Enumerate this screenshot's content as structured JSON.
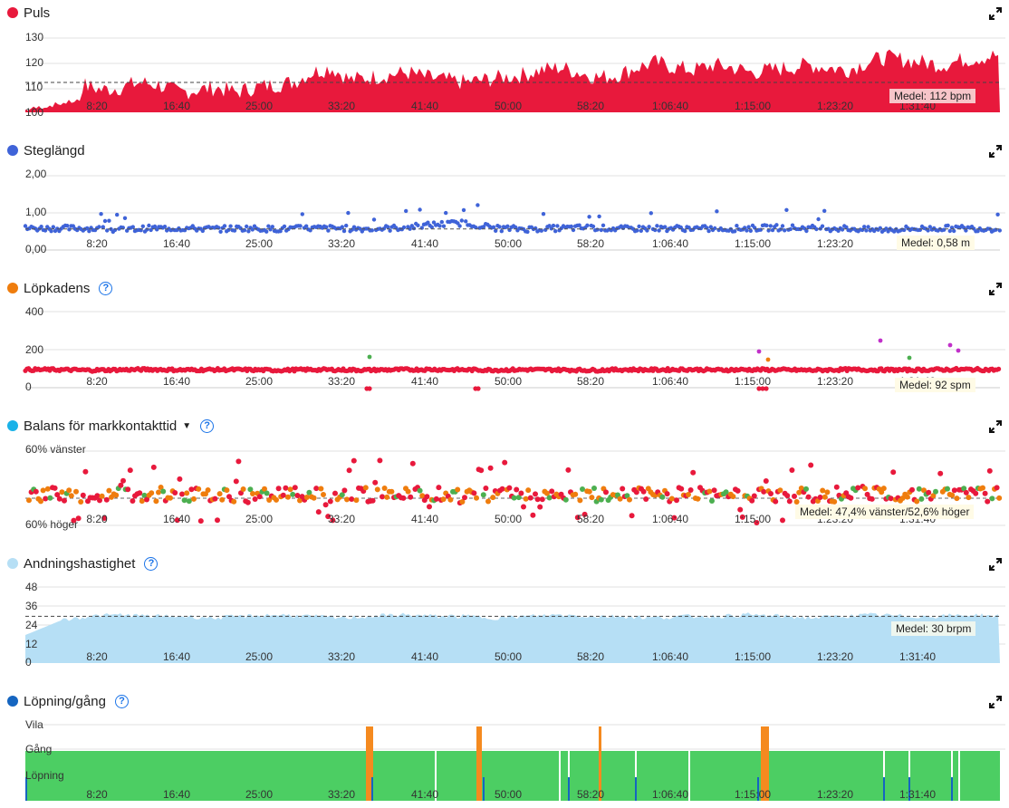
{
  "time_ticks": [
    "8:20",
    "16:40",
    "25:00",
    "33:20",
    "41:40",
    "50:00",
    "58:20",
    "1:06:40",
    "1:15:00",
    "1:23:20",
    "1:31:40"
  ],
  "panels": {
    "puls": {
      "title": "Puls",
      "color": "#e8193c",
      "y_ticks": [
        "130",
        "120",
        "110",
        "100"
      ],
      "mean_label": "Medel: 112 bpm"
    },
    "steglangd": {
      "title": "Steglängd",
      "color": "#3f63d8",
      "y_ticks": [
        "2,00",
        "1,00",
        "0,00"
      ],
      "mean_label": "Medel: 0,58 m"
    },
    "lopkadens": {
      "title": "Löpkadens",
      "color": "#ef7d0d",
      "y_ticks": [
        "400",
        "200",
        "0"
      ],
      "mean_label": "Medel: 92 spm"
    },
    "balans": {
      "title": "Balans för markkontakttid",
      "color": "#1ab2e8",
      "y_ticks": [
        "60% vänster",
        "60% höger"
      ],
      "mean_label": "Medel: 47,4% vänster/52,6% höger"
    },
    "andning": {
      "title": "Andningshastighet",
      "color": "#b6dff5",
      "y_ticks": [
        "48",
        "36",
        "24",
        "12",
        "0"
      ],
      "mean_label": "Medel: 30 brpm"
    },
    "lopning": {
      "title": "Löpning/gång",
      "color": "#1565c0",
      "y_ticks": [
        "Vila",
        "Gång",
        "Löpning"
      ]
    }
  },
  "chart_data": [
    {
      "type": "area",
      "title": "Puls",
      "x_ticks": [
        "8:20",
        "16:40",
        "25:00",
        "33:20",
        "41:40",
        "50:00",
        "58:20",
        "1:06:40",
        "1:15:00",
        "1:23:20",
        "1:31:40"
      ],
      "ylim": [
        100,
        130
      ],
      "mean": 112,
      "unit": "bpm",
      "series": [
        {
          "values": [
            100,
            103,
            108,
            111,
            109,
            110,
            112,
            111,
            108,
            109,
            110,
            108,
            110,
            111,
            112,
            116,
            118,
            113,
            114,
            115,
            116,
            114,
            113,
            112,
            113,
            114,
            115,
            117,
            118,
            116,
            114,
            115,
            118,
            120,
            118,
            117,
            119,
            118,
            116,
            117,
            118,
            119,
            118,
            117,
            120,
            122,
            121,
            120,
            119,
            121,
            122,
            123
          ]
        }
      ]
    },
    {
      "type": "scatter",
      "title": "Steglängd",
      "ylim": [
        0,
        2
      ],
      "mean": 0.58,
      "unit": "m",
      "series": [
        {
          "values": [
            0.6,
            0.6,
            0.6,
            0.55,
            0.6,
            0.6,
            0.58,
            0.6,
            0.58,
            0.6,
            0.6,
            0.58,
            0.62,
            0.7,
            0.75,
            0.6,
            0.58,
            0.6,
            0.62,
            0.58,
            0.6,
            0.6,
            0.58,
            0.6,
            0.62,
            0.6,
            0.6,
            0.55,
            0.58,
            0.6,
            0.6,
            0.58
          ]
        }
      ]
    },
    {
      "type": "scatter",
      "title": "Löpkadens",
      "ylim": [
        0,
        400
      ],
      "mean": 92,
      "unit": "spm",
      "series": [
        {
          "values": [
            95,
            95,
            92,
            94,
            96,
            93,
            95,
            94,
            92,
            95,
            94,
            93,
            95,
            96,
            94,
            93,
            95,
            94,
            92,
            95,
            94,
            96,
            93,
            95,
            94,
            92,
            95,
            94,
            93,
            95,
            96,
            94
          ]
        }
      ]
    },
    {
      "type": "scatter",
      "title": "Balans för markkontakttid",
      "ylim": [
        "60% höger",
        "60% vänster"
      ],
      "mean": "47,4% vänster/52,6% höger"
    },
    {
      "type": "area",
      "title": "Andningshastighet",
      "ylim": [
        0,
        48
      ],
      "mean": 30,
      "unit": "brpm",
      "series": [
        {
          "values": [
            18,
            27,
            30,
            31,
            30,
            30,
            29,
            30,
            31,
            30,
            29,
            30,
            31,
            30,
            30,
            29,
            30,
            31,
            30,
            30,
            29,
            30,
            30,
            31,
            30,
            29,
            30,
            31,
            30,
            30,
            31,
            30
          ]
        }
      ]
    },
    {
      "type": "bar",
      "title": "Löpning/gång",
      "categories": [
        "Vila",
        "Gång",
        "Löpning"
      ]
    }
  ]
}
